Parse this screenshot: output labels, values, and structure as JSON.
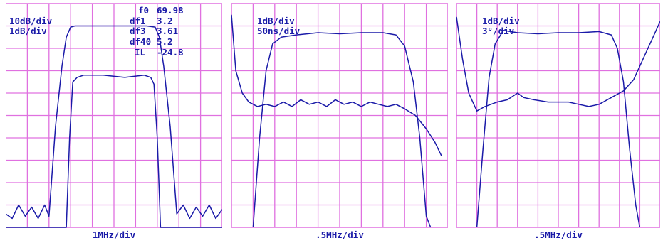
{
  "chart_data": [
    {
      "type": "line",
      "scale_labels": [
        "10dB/div",
        "1dB/div"
      ],
      "readout": [
        {
          "name": "f0",
          "value": "69.98"
        },
        {
          "name": "df1",
          "value": "3.2"
        },
        {
          "name": "df3",
          "value": "3.61"
        },
        {
          "name": "df40",
          "value": "5.2"
        },
        {
          "name": "IL",
          "value": "-24.8"
        }
      ],
      "xlabel": "1MHz/div",
      "grid": true,
      "grid_divisions": {
        "x": 10,
        "y": 10
      },
      "series": [
        {
          "points": [
            [
              0.0,
              9.4
            ],
            [
              0.3,
              9.6
            ],
            [
              0.6,
              9.0
            ],
            [
              0.9,
              9.5
            ],
            [
              1.2,
              9.1
            ],
            [
              1.5,
              9.6
            ],
            [
              1.8,
              9.0
            ],
            [
              2.0,
              9.5
            ],
            [
              2.3,
              5.5
            ],
            [
              2.6,
              2.8
            ],
            [
              2.8,
              1.5
            ],
            [
              3.0,
              1.05
            ],
            [
              3.2,
              1.0
            ],
            [
              3.5,
              1.0
            ],
            [
              4.5,
              1.0
            ],
            [
              5.5,
              1.0
            ],
            [
              6.5,
              1.0
            ],
            [
              6.9,
              1.05
            ],
            [
              7.1,
              1.5
            ],
            [
              7.3,
              2.8
            ],
            [
              7.6,
              5.5
            ],
            [
              7.9,
              9.4
            ],
            [
              8.2,
              9.0
            ],
            [
              8.5,
              9.6
            ],
            [
              8.8,
              9.1
            ],
            [
              9.1,
              9.5
            ],
            [
              9.4,
              9.0
            ],
            [
              9.7,
              9.6
            ],
            [
              10.0,
              9.2
            ]
          ]
        },
        {
          "points": [
            [
              0.0,
              10.0
            ],
            [
              2.8,
              10.0
            ],
            [
              2.95,
              6.0
            ],
            [
              3.1,
              3.5
            ],
            [
              3.3,
              3.3
            ],
            [
              3.6,
              3.2
            ],
            [
              4.5,
              3.2
            ],
            [
              5.5,
              3.3
            ],
            [
              6.4,
              3.2
            ],
            [
              6.7,
              3.3
            ],
            [
              6.85,
              3.6
            ],
            [
              7.0,
              6.0
            ],
            [
              7.15,
              10.0
            ],
            [
              10.0,
              10.0
            ]
          ]
        }
      ]
    },
    {
      "type": "line",
      "scale_labels": [
        "1dB/div",
        "50ns/div"
      ],
      "xlabel": ".5MHz/div",
      "grid": true,
      "grid_divisions": {
        "x": 10,
        "y": 10
      },
      "series": [
        {
          "points": [
            [
              0.0,
              0.5
            ],
            [
              0.2,
              3.0
            ],
            [
              0.5,
              4.0
            ],
            [
              0.8,
              4.4
            ],
            [
              1.2,
              4.6
            ],
            [
              1.6,
              4.5
            ],
            [
              2.0,
              4.6
            ],
            [
              2.4,
              4.4
            ],
            [
              2.8,
              4.6
            ],
            [
              3.2,
              4.3
            ],
            [
              3.6,
              4.5
            ],
            [
              4.0,
              4.4
            ],
            [
              4.4,
              4.6
            ],
            [
              4.8,
              4.3
            ],
            [
              5.2,
              4.5
            ],
            [
              5.6,
              4.4
            ],
            [
              6.0,
              4.6
            ],
            [
              6.4,
              4.4
            ],
            [
              6.8,
              4.5
            ],
            [
              7.2,
              4.6
            ],
            [
              7.6,
              4.5
            ],
            [
              8.0,
              4.7
            ],
            [
              8.5,
              5.0
            ],
            [
              9.0,
              5.6
            ],
            [
              9.4,
              6.2
            ],
            [
              9.7,
              6.8
            ]
          ]
        },
        {
          "points": [
            [
              1.0,
              10.0
            ],
            [
              1.3,
              6.0
            ],
            [
              1.6,
              3.0
            ],
            [
              1.9,
              1.8
            ],
            [
              2.3,
              1.5
            ],
            [
              3.0,
              1.4
            ],
            [
              4.0,
              1.3
            ],
            [
              5.0,
              1.35
            ],
            [
              6.0,
              1.3
            ],
            [
              7.0,
              1.3
            ],
            [
              7.6,
              1.4
            ],
            [
              8.0,
              1.9
            ],
            [
              8.4,
              3.5
            ],
            [
              8.7,
              6.0
            ],
            [
              9.0,
              9.5
            ],
            [
              9.2,
              10.0
            ]
          ]
        }
      ]
    },
    {
      "type": "line",
      "scale_labels": [
        "1dB/div",
        "3°/div"
      ],
      "xlabel": ".5MHz/div",
      "grid": true,
      "grid_divisions": {
        "x": 10,
        "y": 10
      },
      "series": [
        {
          "points": [
            [
              0.0,
              0.6
            ],
            [
              0.3,
              2.5
            ],
            [
              0.6,
              4.0
            ],
            [
              1.0,
              4.8
            ],
            [
              1.4,
              4.6
            ],
            [
              2.0,
              4.4
            ],
            [
              2.5,
              4.3
            ],
            [
              3.0,
              4.0
            ],
            [
              3.3,
              4.2
            ],
            [
              3.8,
              4.3
            ],
            [
              4.5,
              4.4
            ],
            [
              5.5,
              4.4
            ],
            [
              6.0,
              4.5
            ],
            [
              6.5,
              4.6
            ],
            [
              7.0,
              4.5
            ],
            [
              7.6,
              4.2
            ],
            [
              8.2,
              3.9
            ],
            [
              8.7,
              3.4
            ],
            [
              9.2,
              2.4
            ],
            [
              9.6,
              1.6
            ],
            [
              10.0,
              0.8
            ]
          ]
        },
        {
          "points": [
            [
              1.0,
              10.0
            ],
            [
              1.3,
              6.5
            ],
            [
              1.6,
              3.3
            ],
            [
              1.9,
              1.8
            ],
            [
              2.3,
              1.2
            ],
            [
              3.0,
              1.3
            ],
            [
              4.0,
              1.35
            ],
            [
              5.0,
              1.3
            ],
            [
              6.0,
              1.3
            ],
            [
              7.0,
              1.25
            ],
            [
              7.6,
              1.4
            ],
            [
              7.9,
              2.0
            ],
            [
              8.2,
              3.5
            ],
            [
              8.5,
              6.5
            ],
            [
              8.8,
              9.0
            ],
            [
              9.0,
              10.0
            ]
          ]
        }
      ]
    }
  ]
}
